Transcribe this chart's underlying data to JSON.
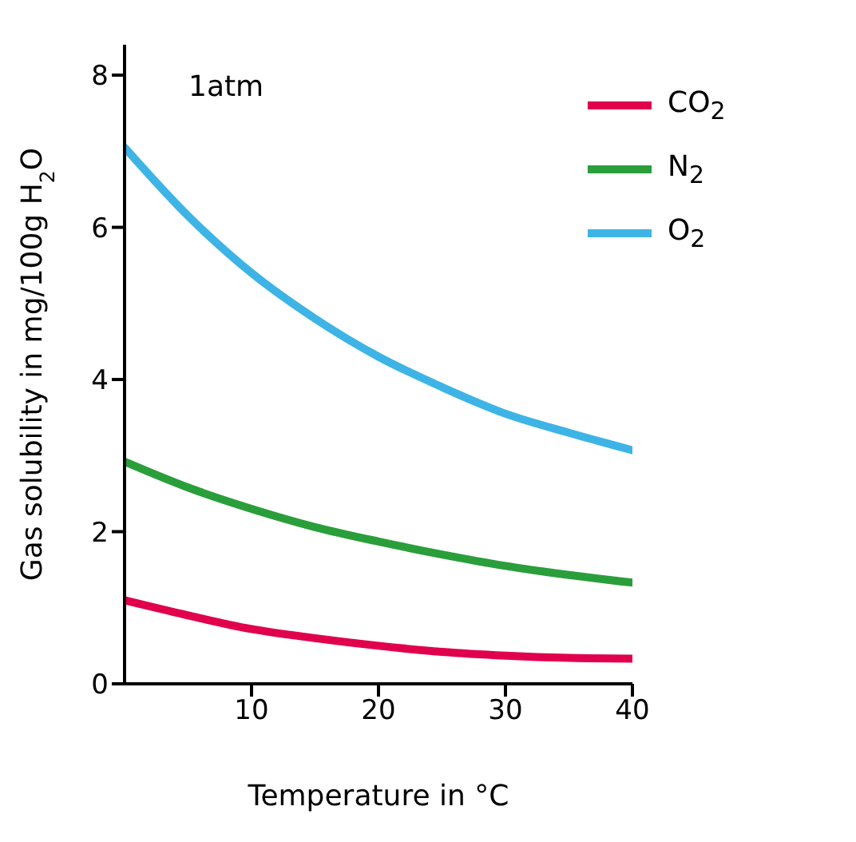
{
  "chart_data": {
    "type": "line",
    "xlabel": "Temperature in °C",
    "ylabel": "Gas solubility in mg/100g H$_{2}$O",
    "annotations": [
      "1atm"
    ],
    "x": [
      0,
      5,
      10,
      15,
      20,
      25,
      30,
      35,
      40
    ],
    "series": [
      {
        "name": "O$_{2}$",
        "color": "#3db4e5",
        "values": [
          7.05,
          6.15,
          5.4,
          4.8,
          4.3,
          3.9,
          3.55,
          3.3,
          3.07
        ]
      },
      {
        "name": "CO$_{2}$",
        "color": "#e0004d",
        "values": [
          1.1,
          0.9,
          0.72,
          0.6,
          0.5,
          0.42,
          0.37,
          0.34,
          0.33
        ]
      },
      {
        "name": "N$_{2}$",
        "color": "#2a9e3a",
        "values": [
          2.92,
          2.58,
          2.3,
          2.06,
          1.87,
          1.7,
          1.55,
          1.43,
          1.33
        ]
      }
    ],
    "xlim": [
      0,
      40
    ],
    "xticks": [
      10,
      20,
      30,
      40
    ],
    "ylim": [
      0,
      8.4
    ],
    "yticks": [
      0,
      2,
      4,
      6,
      8
    ],
    "grid": false,
    "legend": "top right",
    "marker": "none",
    "line_style": "solid"
  }
}
